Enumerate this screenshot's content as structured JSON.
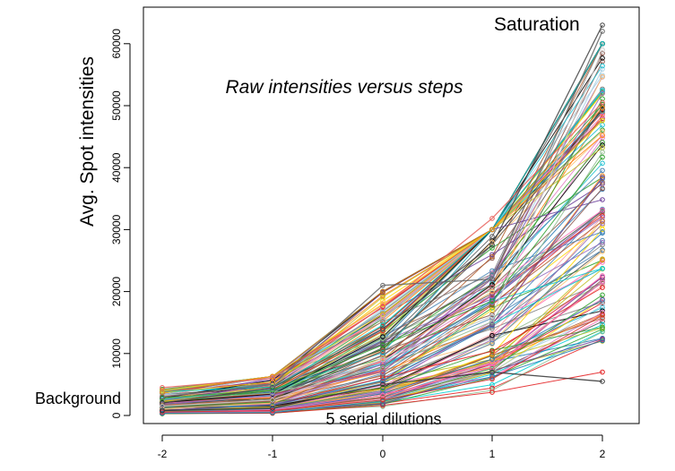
{
  "chart_data": {
    "type": "line",
    "subtitle": "Raw intensities versus steps",
    "ylabel": "Avg. Spot intensities",
    "xlabel": "",
    "x": [
      -2,
      -1,
      0,
      1,
      2
    ],
    "x_ticks": [
      "-2",
      "-1",
      "0",
      "1",
      "2"
    ],
    "y_ticks": [
      "0",
      "10000",
      "20000",
      "30000",
      "40000",
      "50000",
      "60000"
    ],
    "ylim": [
      0,
      65000
    ],
    "grid": false,
    "legend": "none",
    "annotations": {
      "saturation": "Saturation",
      "background": "Background",
      "dilutions": "5 serial dilutions"
    },
    "n_series": 150,
    "series_ranges": {
      "-2": [
        300,
        4800
      ],
      "-1": [
        500,
        6300
      ],
      "0": [
        1000,
        21000
      ],
      "1": [
        2800,
        31800
      ],
      "2": [
        5500,
        63000
      ]
    },
    "highlighted_series": [
      {
        "values": [
          4500,
          6000,
          17500,
          31800,
          50500
        ],
        "color": "#e8615c"
      },
      {
        "values": [
          2000,
          4500,
          14000,
          27500,
          63000
        ],
        "color": "#444444"
      },
      {
        "values": [
          3000,
          5000,
          21000,
          22000,
          62000
        ],
        "color": "#666666"
      },
      {
        "values": [
          1500,
          2500,
          9000,
          16000,
          59000
        ],
        "color": "#cccccc"
      },
      {
        "values": [
          800,
          1200,
          5000,
          7000,
          5500
        ],
        "color": "#333333"
      }
    ]
  },
  "colors": {
    "palette": [
      "#1f77b4",
      "#ff7f0e",
      "#2ca02c",
      "#d62728",
      "#9467bd",
      "#8c564b",
      "#e377c2",
      "#7f7f7f",
      "#bcbd22",
      "#17becf",
      "#a6cee3",
      "#33a02c",
      "#fb9a99",
      "#e31a1c",
      "#fdbf6f",
      "#6a3d9a",
      "#b15928",
      "#000000",
      "#555555",
      "#ffd700",
      "#00ced1",
      "#8fbc8f",
      "#ff69b4",
      "#4682b4"
    ]
  }
}
